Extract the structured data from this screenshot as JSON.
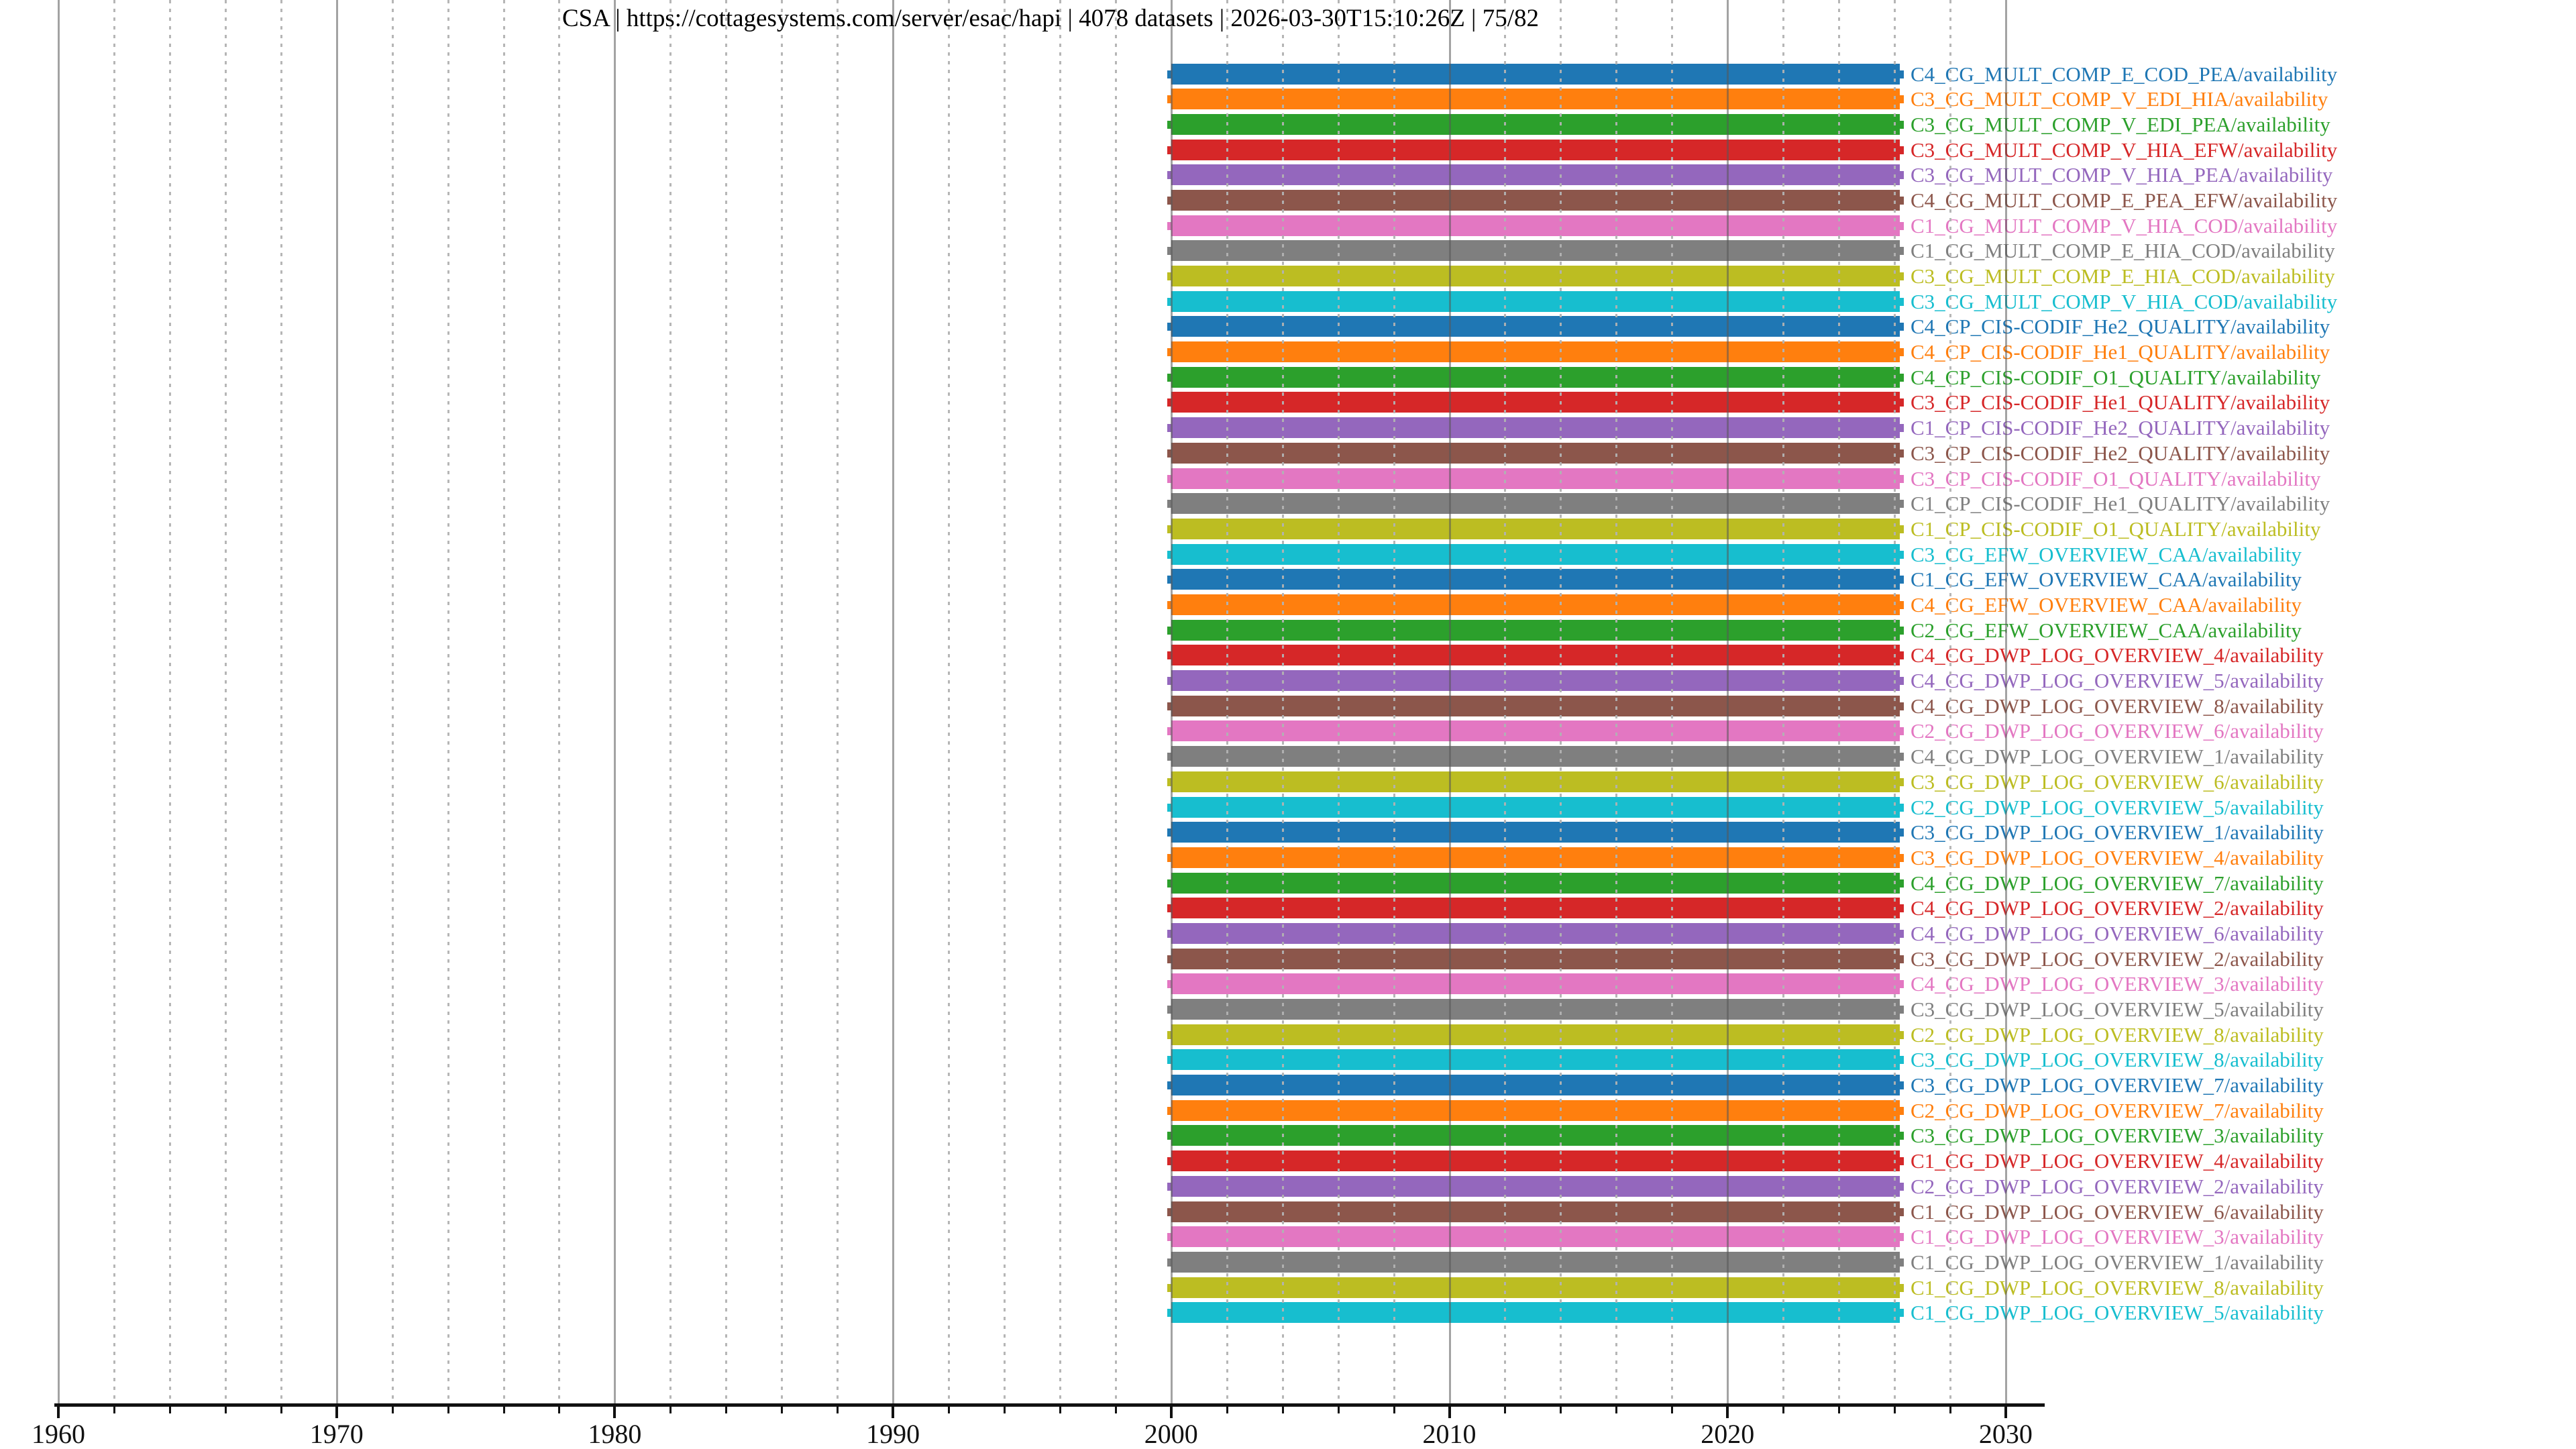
{
  "title": {
    "text": "CSA | https://cottagesystems.com/server/esac/hapi | 4078 datasets | 2026-03-30T15:10:26Z | 75/82",
    "provider": "CSA",
    "server_url": "https://cottagesystems.com/server/esac/hapi",
    "dataset_count": "4078 datasets",
    "generated_timestamp": "2026-03-30T15:10:26Z",
    "page_indicator": "75/82"
  },
  "palette": {
    "blue": "#1f77b4",
    "orange": "#ff7f0e",
    "green": "#2ca02c",
    "red": "#d62728",
    "purple": "#9467bd",
    "brown": "#8c564b",
    "pink": "#e377c2",
    "gray": "#7f7f7f",
    "olive": "#bcbd22",
    "cyan": "#17becf",
    "axis": "#111111",
    "major_grid": "#9a9a9a",
    "minor_grid": "#c8c8c8"
  },
  "chart_data": {
    "type": "bar",
    "orientation": "horizontal",
    "title": "CSA | https://cottagesystems.com/server/esac/hapi | 4078 datasets | 2026-03-30T15:10:26Z | 75/82",
    "xlabel": "",
    "ylabel": "",
    "xlim": [
      1959.85,
      2031.4
    ],
    "x_major_ticks": [
      1960,
      1970,
      1980,
      1990,
      2000,
      2010,
      2020,
      2030
    ],
    "x_minor_step": 2,
    "grid": true,
    "legend_position": "none",
    "bar_start_year": 2000.0,
    "bar_end_year": 2026.2,
    "rows": [
      {
        "label": "C4_CG_MULT_COMP_E_COD_PEA/availability",
        "color": "#1f77b4",
        "start": 2000.0,
        "end": 2026.2
      },
      {
        "label": "C3_CG_MULT_COMP_V_EDI_HIA/availability",
        "color": "#ff7f0e",
        "start": 2000.0,
        "end": 2026.2
      },
      {
        "label": "C3_CG_MULT_COMP_V_EDI_PEA/availability",
        "color": "#2ca02c",
        "start": 2000.0,
        "end": 2026.2
      },
      {
        "label": "C3_CG_MULT_COMP_V_HIA_EFW/availability",
        "color": "#d62728",
        "start": 2000.0,
        "end": 2026.2
      },
      {
        "label": "C3_CG_MULT_COMP_V_HIA_PEA/availability",
        "color": "#9467bd",
        "start": 2000.0,
        "end": 2026.2
      },
      {
        "label": "C4_CG_MULT_COMP_E_PEA_EFW/availability",
        "color": "#8c564b",
        "start": 2000.0,
        "end": 2026.2
      },
      {
        "label": "C1_CG_MULT_COMP_V_HIA_COD/availability",
        "color": "#e377c2",
        "start": 2000.0,
        "end": 2026.2
      },
      {
        "label": "C1_CG_MULT_COMP_E_HIA_COD/availability",
        "color": "#7f7f7f",
        "start": 2000.0,
        "end": 2026.2
      },
      {
        "label": "C3_CG_MULT_COMP_E_HIA_COD/availability",
        "color": "#bcbd22",
        "start": 2000.0,
        "end": 2026.2
      },
      {
        "label": "C3_CG_MULT_COMP_V_HIA_COD/availability",
        "color": "#17becf",
        "start": 2000.0,
        "end": 2026.2
      },
      {
        "label": "C4_CP_CIS-CODIF_He2_QUALITY/availability",
        "color": "#1f77b4",
        "start": 2000.0,
        "end": 2026.2
      },
      {
        "label": "C4_CP_CIS-CODIF_He1_QUALITY/availability",
        "color": "#ff7f0e",
        "start": 2000.0,
        "end": 2026.2
      },
      {
        "label": "C4_CP_CIS-CODIF_O1_QUALITY/availability",
        "color": "#2ca02c",
        "start": 2000.0,
        "end": 2026.2
      },
      {
        "label": "C3_CP_CIS-CODIF_He1_QUALITY/availability",
        "color": "#d62728",
        "start": 2000.0,
        "end": 2026.2
      },
      {
        "label": "C1_CP_CIS-CODIF_He2_QUALITY/availability",
        "color": "#9467bd",
        "start": 2000.0,
        "end": 2026.2
      },
      {
        "label": "C3_CP_CIS-CODIF_He2_QUALITY/availability",
        "color": "#8c564b",
        "start": 2000.0,
        "end": 2026.2
      },
      {
        "label": "C3_CP_CIS-CODIF_O1_QUALITY/availability",
        "color": "#e377c2",
        "start": 2000.0,
        "end": 2026.2
      },
      {
        "label": "C1_CP_CIS-CODIF_He1_QUALITY/availability",
        "color": "#7f7f7f",
        "start": 2000.0,
        "end": 2026.2
      },
      {
        "label": "C1_CP_CIS-CODIF_O1_QUALITY/availability",
        "color": "#bcbd22",
        "start": 2000.0,
        "end": 2026.2
      },
      {
        "label": "C3_CG_EFW_OVERVIEW_CAA/availability",
        "color": "#17becf",
        "start": 2000.0,
        "end": 2026.2
      },
      {
        "label": "C1_CG_EFW_OVERVIEW_CAA/availability",
        "color": "#1f77b4",
        "start": 2000.0,
        "end": 2026.2
      },
      {
        "label": "C4_CG_EFW_OVERVIEW_CAA/availability",
        "color": "#ff7f0e",
        "start": 2000.0,
        "end": 2026.2
      },
      {
        "label": "C2_CG_EFW_OVERVIEW_CAA/availability",
        "color": "#2ca02c",
        "start": 2000.0,
        "end": 2026.2
      },
      {
        "label": "C4_CG_DWP_LOG_OVERVIEW_4/availability",
        "color": "#d62728",
        "start": 2000.0,
        "end": 2026.2
      },
      {
        "label": "C4_CG_DWP_LOG_OVERVIEW_5/availability",
        "color": "#9467bd",
        "start": 2000.0,
        "end": 2026.2
      },
      {
        "label": "C4_CG_DWP_LOG_OVERVIEW_8/availability",
        "color": "#8c564b",
        "start": 2000.0,
        "end": 2026.2
      },
      {
        "label": "C2_CG_DWP_LOG_OVERVIEW_6/availability",
        "color": "#e377c2",
        "start": 2000.0,
        "end": 2026.2
      },
      {
        "label": "C4_CG_DWP_LOG_OVERVIEW_1/availability",
        "color": "#7f7f7f",
        "start": 2000.0,
        "end": 2026.2
      },
      {
        "label": "C3_CG_DWP_LOG_OVERVIEW_6/availability",
        "color": "#bcbd22",
        "start": 2000.0,
        "end": 2026.2
      },
      {
        "label": "C2_CG_DWP_LOG_OVERVIEW_5/availability",
        "color": "#17becf",
        "start": 2000.0,
        "end": 2026.2
      },
      {
        "label": "C3_CG_DWP_LOG_OVERVIEW_1/availability",
        "color": "#1f77b4",
        "start": 2000.0,
        "end": 2026.2
      },
      {
        "label": "C3_CG_DWP_LOG_OVERVIEW_4/availability",
        "color": "#ff7f0e",
        "start": 2000.0,
        "end": 2026.2
      },
      {
        "label": "C4_CG_DWP_LOG_OVERVIEW_7/availability",
        "color": "#2ca02c",
        "start": 2000.0,
        "end": 2026.2
      },
      {
        "label": "C4_CG_DWP_LOG_OVERVIEW_2/availability",
        "color": "#d62728",
        "start": 2000.0,
        "end": 2026.2
      },
      {
        "label": "C4_CG_DWP_LOG_OVERVIEW_6/availability",
        "color": "#9467bd",
        "start": 2000.0,
        "end": 2026.2
      },
      {
        "label": "C3_CG_DWP_LOG_OVERVIEW_2/availability",
        "color": "#8c564b",
        "start": 2000.0,
        "end": 2026.2
      },
      {
        "label": "C4_CG_DWP_LOG_OVERVIEW_3/availability",
        "color": "#e377c2",
        "start": 2000.0,
        "end": 2026.2
      },
      {
        "label": "C3_CG_DWP_LOG_OVERVIEW_5/availability",
        "color": "#7f7f7f",
        "start": 2000.0,
        "end": 2026.2
      },
      {
        "label": "C2_CG_DWP_LOG_OVERVIEW_8/availability",
        "color": "#bcbd22",
        "start": 2000.0,
        "end": 2026.2
      },
      {
        "label": "C3_CG_DWP_LOG_OVERVIEW_8/availability",
        "color": "#17becf",
        "start": 2000.0,
        "end": 2026.2
      },
      {
        "label": "C3_CG_DWP_LOG_OVERVIEW_7/availability",
        "color": "#1f77b4",
        "start": 2000.0,
        "end": 2026.2
      },
      {
        "label": "C2_CG_DWP_LOG_OVERVIEW_7/availability",
        "color": "#ff7f0e",
        "start": 2000.0,
        "end": 2026.2
      },
      {
        "label": "C3_CG_DWP_LOG_OVERVIEW_3/availability",
        "color": "#2ca02c",
        "start": 2000.0,
        "end": 2026.2
      },
      {
        "label": "C1_CG_DWP_LOG_OVERVIEW_4/availability",
        "color": "#d62728",
        "start": 2000.0,
        "end": 2026.2
      },
      {
        "label": "C2_CG_DWP_LOG_OVERVIEW_2/availability",
        "color": "#9467bd",
        "start": 2000.0,
        "end": 2026.2
      },
      {
        "label": "C1_CG_DWP_LOG_OVERVIEW_6/availability",
        "color": "#8c564b",
        "start": 2000.0,
        "end": 2026.2
      },
      {
        "label": "C1_CG_DWP_LOG_OVERVIEW_3/availability",
        "color": "#e377c2",
        "start": 2000.0,
        "end": 2026.2
      },
      {
        "label": "C1_CG_DWP_LOG_OVERVIEW_1/availability",
        "color": "#7f7f7f",
        "start": 2000.0,
        "end": 2026.2
      },
      {
        "label": "C1_CG_DWP_LOG_OVERVIEW_8/availability",
        "color": "#bcbd22",
        "start": 2000.0,
        "end": 2026.2
      },
      {
        "label": "C1_CG_DWP_LOG_OVERVIEW_5/availability",
        "color": "#17becf",
        "start": 2000.0,
        "end": 2026.2
      }
    ]
  }
}
